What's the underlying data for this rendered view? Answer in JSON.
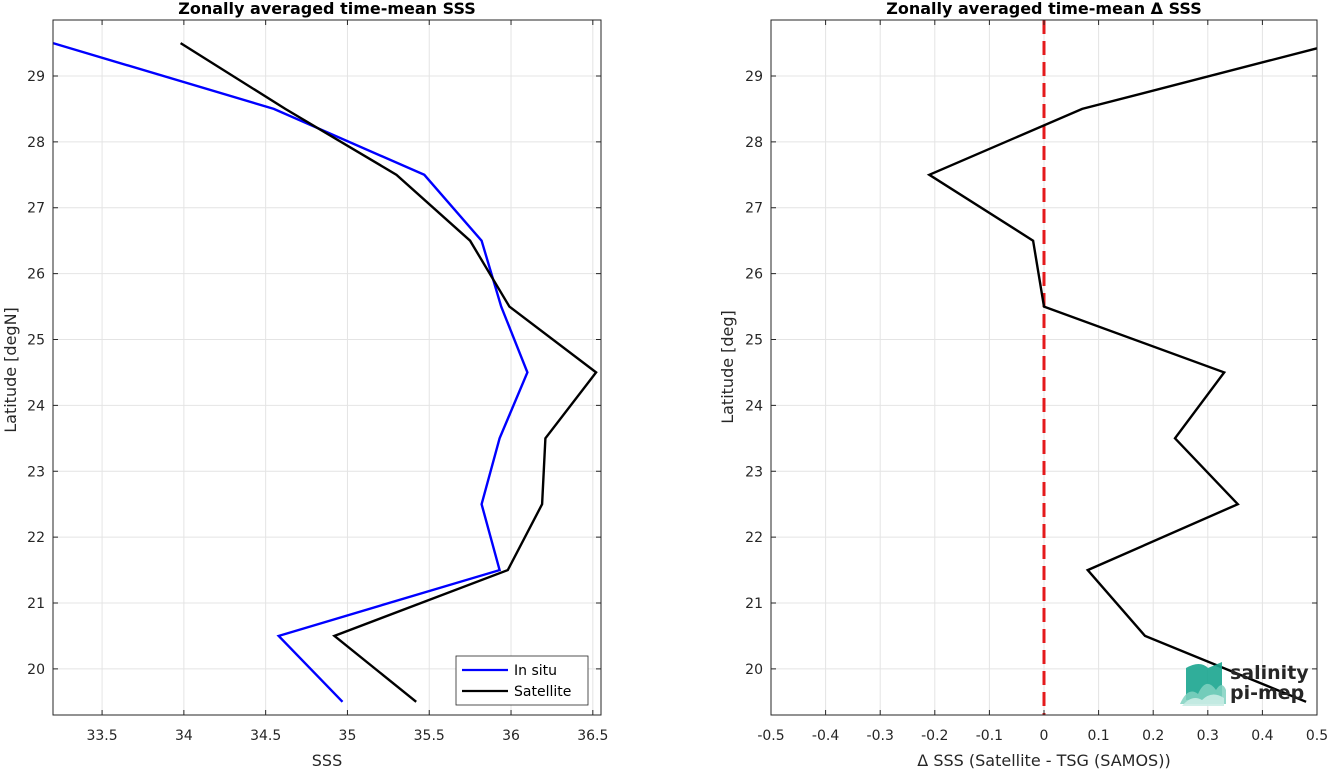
{
  "chart_data": [
    {
      "type": "line",
      "title": "Zonally averaged time-mean SSS",
      "xlabel": "SSS",
      "ylabel": "Latitude [degN]",
      "xlim": [
        33.2,
        36.55
      ],
      "ylim": [
        19.3,
        29.85
      ],
      "xticks": [
        "33.5",
        "34",
        "34.5",
        "35",
        "35.5",
        "36",
        "36.5"
      ],
      "yticks": [
        "20",
        "21",
        "22",
        "23",
        "24",
        "25",
        "26",
        "27",
        "28",
        "29"
      ],
      "grid": true,
      "legend_position": "bottom-right",
      "series": [
        {
          "name": "In situ",
          "color": "#0000ff",
          "points": [
            [
              33.2,
              29.5
            ],
            [
              34.55,
              28.5
            ],
            [
              35.47,
              27.5
            ],
            [
              35.82,
              26.5
            ],
            [
              35.94,
              25.5
            ],
            [
              36.1,
              24.5
            ],
            [
              35.93,
              23.5
            ],
            [
              35.82,
              22.5
            ],
            [
              35.93,
              21.5
            ],
            [
              34.58,
              20.5
            ],
            [
              34.97,
              19.5
            ]
          ]
        },
        {
          "name": "Satellite",
          "color": "#000000",
          "points": [
            [
              33.98,
              29.5
            ],
            [
              34.62,
              28.5
            ],
            [
              35.3,
              27.5
            ],
            [
              35.75,
              26.5
            ],
            [
              35.99,
              25.5
            ],
            [
              36.52,
              24.5
            ],
            [
              36.21,
              23.5
            ],
            [
              36.19,
              22.5
            ],
            [
              35.98,
              21.5
            ],
            [
              34.92,
              20.5
            ],
            [
              35.42,
              19.5
            ]
          ]
        }
      ]
    },
    {
      "type": "line",
      "title": "Zonally averaged time-mean Δ SSS",
      "xlabel": "Δ SSS (Satellite - TSG (SAMOS))",
      "ylabel": "Latitude [deg]",
      "xlim": [
        -0.5,
        0.5
      ],
      "ylim": [
        19.3,
        29.85
      ],
      "xticks": [
        "-0.5",
        "-0.4",
        "-0.3",
        "-0.2",
        "-0.1",
        "0",
        "0.1",
        "0.2",
        "0.3",
        "0.4",
        "0.5"
      ],
      "yticks": [
        "20",
        "21",
        "22",
        "23",
        "24",
        "25",
        "26",
        "27",
        "28",
        "29"
      ],
      "grid": true,
      "reference_line": {
        "x": 0,
        "color": "#e41a1c",
        "style": "dashed"
      },
      "series": [
        {
          "color": "#000000",
          "points": [
            [
              0.5,
              29.42
            ],
            [
              0.07,
              28.5
            ],
            [
              -0.21,
              27.5
            ],
            [
              -0.02,
              26.5
            ],
            [
              0.0,
              25.5
            ],
            [
              0.33,
              24.5
            ],
            [
              0.24,
              23.5
            ],
            [
              0.355,
              22.5
            ],
            [
              0.08,
              21.5
            ],
            [
              0.185,
              20.5
            ],
            [
              0.48,
              19.5
            ]
          ]
        }
      ]
    }
  ],
  "logo": {
    "line1": "salinity",
    "line2": "pi-mep",
    "color1": "#1aa58f",
    "color2": "#2a3f5a"
  }
}
